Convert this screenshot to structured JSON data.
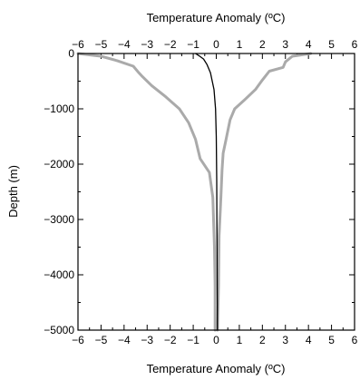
{
  "chart_data": {
    "type": "line",
    "title": "",
    "xlabel_top": "Temperature Anomaly (ºC)",
    "xlabel_bottom": "Temperature Anomaly (ºC)",
    "ylabel": "Depth (m)",
    "xlim": [
      -6,
      6
    ],
    "ylim": [
      -5000,
      0
    ],
    "xticks": [
      -6,
      -5,
      -4,
      -3,
      -2,
      -1,
      0,
      1,
      2,
      3,
      4,
      5,
      6
    ],
    "xtick_labels": [
      "−6",
      "−5",
      "−4",
      "−3",
      "−2",
      "−1",
      "0",
      "1",
      "2",
      "3",
      "4",
      "5",
      "6"
    ],
    "yticks": [
      0,
      -1000,
      -2000,
      -3000,
      -4000,
      -5000
    ],
    "ytick_labels": [
      "0",
      "−1000",
      "−2000",
      "−3000",
      "−4000",
      "−5000"
    ],
    "grid": false,
    "series": [
      {
        "color": "#aaaaaa",
        "points": [
          [
            -6.0,
            0
          ],
          [
            -5.0,
            -50
          ],
          [
            -4.3,
            -130
          ],
          [
            -3.6,
            -230
          ],
          [
            -3.4,
            -330
          ],
          [
            -3.2,
            -420
          ],
          [
            -2.8,
            -580
          ],
          [
            -2.2,
            -780
          ],
          [
            -1.6,
            -1000
          ],
          [
            -1.2,
            -1250
          ],
          [
            -0.9,
            -1550
          ],
          [
            -0.7,
            -1900
          ],
          [
            -0.3,
            -2150
          ],
          [
            -0.15,
            -2600
          ],
          [
            -0.08,
            -3500
          ],
          [
            -0.05,
            -4200
          ],
          [
            -0.05,
            -5000
          ]
        ]
      },
      {
        "color": "#aaaaaa",
        "points": [
          [
            4.1,
            0
          ],
          [
            3.3,
            -50
          ],
          [
            3.0,
            -150
          ],
          [
            2.9,
            -250
          ],
          [
            2.3,
            -320
          ],
          [
            2.0,
            -480
          ],
          [
            1.7,
            -650
          ],
          [
            1.2,
            -850
          ],
          [
            0.8,
            -1000
          ],
          [
            0.6,
            -1200
          ],
          [
            0.4,
            -1600
          ],
          [
            0.3,
            -1800
          ],
          [
            0.25,
            -2100
          ],
          [
            0.2,
            -2600
          ],
          [
            0.12,
            -3300
          ],
          [
            0.1,
            -4200
          ],
          [
            0.05,
            -5000
          ]
        ]
      },
      {
        "color": "#000000",
        "points": [
          [
            -0.9,
            0
          ],
          [
            -0.75,
            -40
          ],
          [
            -0.55,
            -100
          ],
          [
            -0.4,
            -200
          ],
          [
            -0.25,
            -350
          ],
          [
            -0.1,
            -650
          ],
          [
            -0.03,
            -1000
          ],
          [
            0.0,
            -1500
          ],
          [
            0.02,
            -2300
          ],
          [
            0.03,
            -3500
          ],
          [
            0.05,
            -5000
          ]
        ]
      }
    ]
  }
}
